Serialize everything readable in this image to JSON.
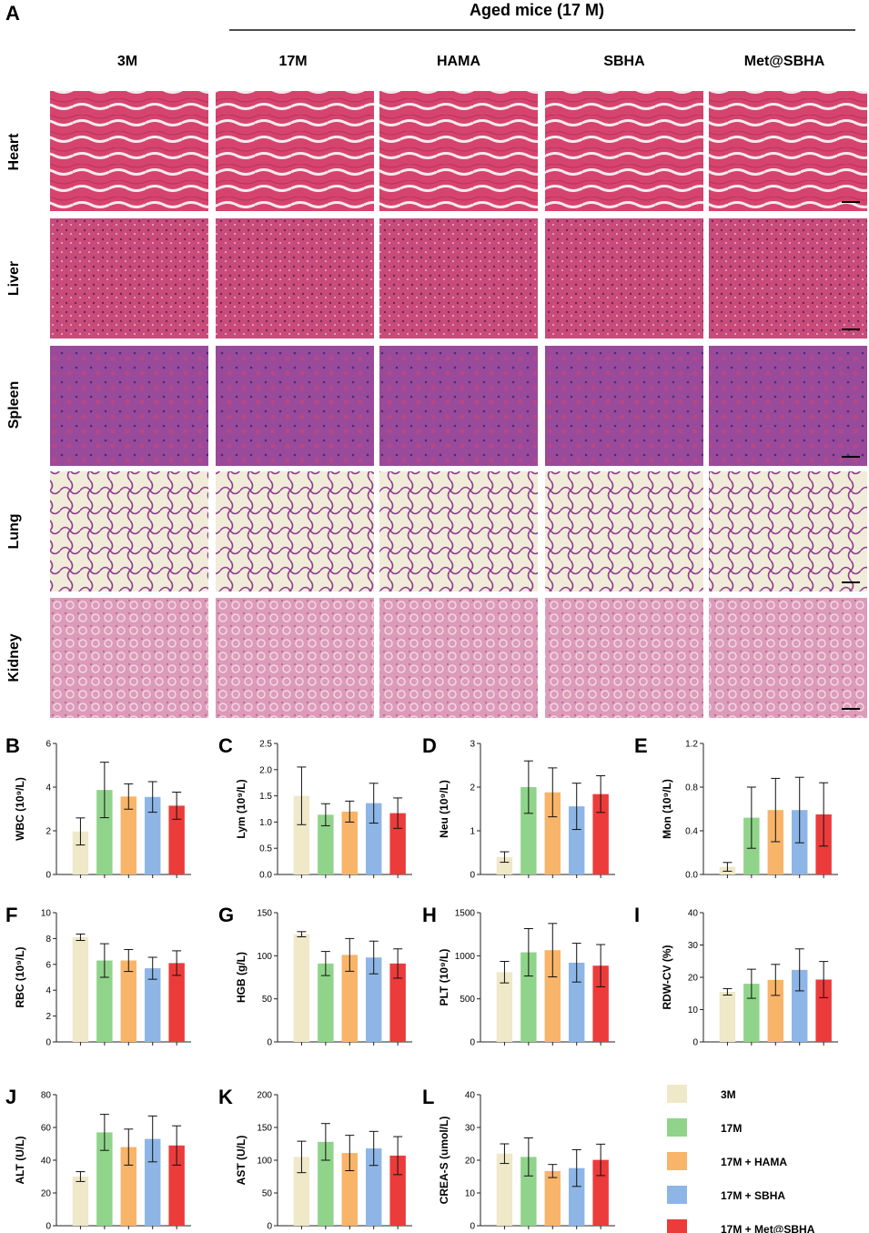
{
  "figure": {
    "panel_a_letter": "A",
    "group_title": "Aged mice (17 M)",
    "columns": [
      "3M",
      "17M",
      "HAMA",
      "SBHA",
      "Met@SBHA"
    ],
    "rows": [
      "Heart",
      "Liver",
      "Spleen",
      "Lung",
      "Kidney"
    ]
  },
  "tissue_colors": {
    "Heart": "#d6446e",
    "Liver": "#c94b7a",
    "Spleen": "#9a4a9a",
    "Lung": "#f1ecd9",
    "Kidney": "#dc9bb8"
  },
  "legend": [
    {
      "label": "3M",
      "color": "#efe8c9"
    },
    {
      "label": "17M",
      "color": "#8fd48a"
    },
    {
      "label": "17M + HAMA",
      "color": "#f8b469"
    },
    {
      "label": "17M + SBHA",
      "color": "#8db6e6"
    },
    {
      "label": "17M + Met@SBHA",
      "color": "#ec3b3b"
    }
  ],
  "chart_data": [
    {
      "type": "bar",
      "letter": "B",
      "ylabel": "WBC (10⁹/L)",
      "ylim": [
        0,
        6
      ],
      "yticks": [
        "0",
        "2",
        "4",
        "6"
      ],
      "categories": [
        "3M",
        "17M",
        "17M + HAMA",
        "17M + SBHA",
        "17M + Met@SBHA"
      ],
      "values": [
        1.97,
        3.87,
        3.57,
        3.55,
        3.15
      ],
      "errors": [
        0.62,
        1.27,
        0.58,
        0.7,
        0.62
      ]
    },
    {
      "type": "bar",
      "letter": "C",
      "ylabel": "Lym (10⁹/L)",
      "ylim": [
        0,
        2.5
      ],
      "yticks": [
        "0.0",
        "0.5",
        "1.0",
        "1.5",
        "2.0",
        "2.5"
      ],
      "categories": [
        "3M",
        "17M",
        "17M + HAMA",
        "17M + SBHA",
        "17M + Met@SBHA"
      ],
      "values": [
        1.5,
        1.14,
        1.2,
        1.36,
        1.17
      ],
      "errors": [
        0.55,
        0.21,
        0.2,
        0.38,
        0.29
      ]
    },
    {
      "type": "bar",
      "letter": "D",
      "ylabel": "Neu (10⁹/L)",
      "ylim": [
        0,
        3
      ],
      "yticks": [
        "0",
        "1",
        "2",
        "3"
      ],
      "categories": [
        "3M",
        "17M",
        "17M + HAMA",
        "17M + SBHA",
        "17M + Met@SBHA"
      ],
      "values": [
        0.4,
        2.0,
        1.88,
        1.56,
        1.84
      ],
      "errors": [
        0.12,
        0.6,
        0.56,
        0.53,
        0.42
      ]
    },
    {
      "type": "bar",
      "letter": "E",
      "ylabel": "Mon (10⁹/L)",
      "ylim": [
        0,
        1.2
      ],
      "yticks": [
        "0.0",
        "0.4",
        "0.8",
        "1.2"
      ],
      "categories": [
        "3M",
        "17M",
        "17M + HAMA",
        "17M + SBHA",
        "17M + Met@SBHA"
      ],
      "values": [
        0.07,
        0.52,
        0.59,
        0.59,
        0.55
      ],
      "errors": [
        0.04,
        0.28,
        0.29,
        0.3,
        0.29
      ]
    },
    {
      "type": "bar",
      "letter": "F",
      "ylabel": "RBC (10⁹/L)",
      "ylim": [
        0,
        10
      ],
      "yticks": [
        "0",
        "2",
        "4",
        "6",
        "8",
        "10"
      ],
      "categories": [
        "3M",
        "17M",
        "17M + HAMA",
        "17M + SBHA",
        "17M + Met@SBHA"
      ],
      "values": [
        8.1,
        6.3,
        6.3,
        5.7,
        6.1
      ],
      "errors": [
        0.25,
        1.3,
        0.85,
        0.85,
        0.95
      ]
    },
    {
      "type": "bar",
      "letter": "G",
      "ylabel": "HGB (g/L)",
      "ylim": [
        0,
        150
      ],
      "yticks": [
        "0",
        "50",
        "100",
        "150"
      ],
      "categories": [
        "3M",
        "17M",
        "17M + HAMA",
        "17M + SBHA",
        "17M + Met@SBHA"
      ],
      "values": [
        125,
        91,
        101,
        98,
        91
      ],
      "errors": [
        3,
        14,
        19,
        19,
        17
      ]
    },
    {
      "type": "bar",
      "letter": "H",
      "ylabel": "PLT (10⁹/L)",
      "ylim": [
        0,
        1500
      ],
      "yticks": [
        "0",
        "500",
        "1000",
        "1500"
      ],
      "categories": [
        "3M",
        "17M",
        "17M + HAMA",
        "17M + SBHA",
        "17M + Met@SBHA"
      ],
      "values": [
        810,
        1040,
        1065,
        920,
        885
      ],
      "errors": [
        125,
        275,
        310,
        225,
        245
      ]
    },
    {
      "type": "bar",
      "letter": "I",
      "ylabel": "RDW-CV (%)",
      "ylim": [
        0,
        40
      ],
      "yticks": [
        "0",
        "10",
        "20",
        "30",
        "40"
      ],
      "categories": [
        "3M",
        "17M",
        "17M + HAMA",
        "17M + SBHA",
        "17M + Met@SBHA"
      ],
      "values": [
        15.5,
        18.0,
        19.2,
        22.3,
        19.3
      ],
      "errors": [
        1.0,
        4.5,
        4.8,
        6.5,
        5.6
      ]
    },
    {
      "type": "bar",
      "letter": "J",
      "ylabel": "ALT (U/L)",
      "ylim": [
        0,
        80
      ],
      "yticks": [
        "0",
        "20",
        "40",
        "60",
        "80"
      ],
      "categories": [
        "3M",
        "17M",
        "17M + HAMA",
        "17M + SBHA",
        "17M + Met@SBHA"
      ],
      "values": [
        30,
        57,
        48,
        53,
        49
      ],
      "errors": [
        3,
        11,
        11,
        14,
        12
      ]
    },
    {
      "type": "bar",
      "letter": "K",
      "ylabel": "AST (U/L)",
      "ylim": [
        0,
        200
      ],
      "yticks": [
        "0",
        "50",
        "100",
        "150",
        "200"
      ],
      "categories": [
        "3M",
        "17M",
        "17M + HAMA",
        "17M + SBHA",
        "17M + Met@SBHA"
      ],
      "values": [
        105,
        128,
        111,
        118,
        107
      ],
      "errors": [
        24,
        28,
        27,
        26,
        29
      ]
    },
    {
      "type": "bar",
      "letter": "L",
      "ylabel": "CREA-S (umol/L)",
      "ylim": [
        0,
        40
      ],
      "yticks": [
        "0",
        "10",
        "20",
        "30",
        "40"
      ],
      "categories": [
        "3M",
        "17M",
        "17M + HAMA",
        "17M + SBHA",
        "17M + Met@SBHA"
      ],
      "values": [
        22.0,
        21.0,
        16.7,
        17.6,
        20.1
      ],
      "errors": [
        3.0,
        5.8,
        2.0,
        5.6,
        4.8
      ]
    }
  ]
}
